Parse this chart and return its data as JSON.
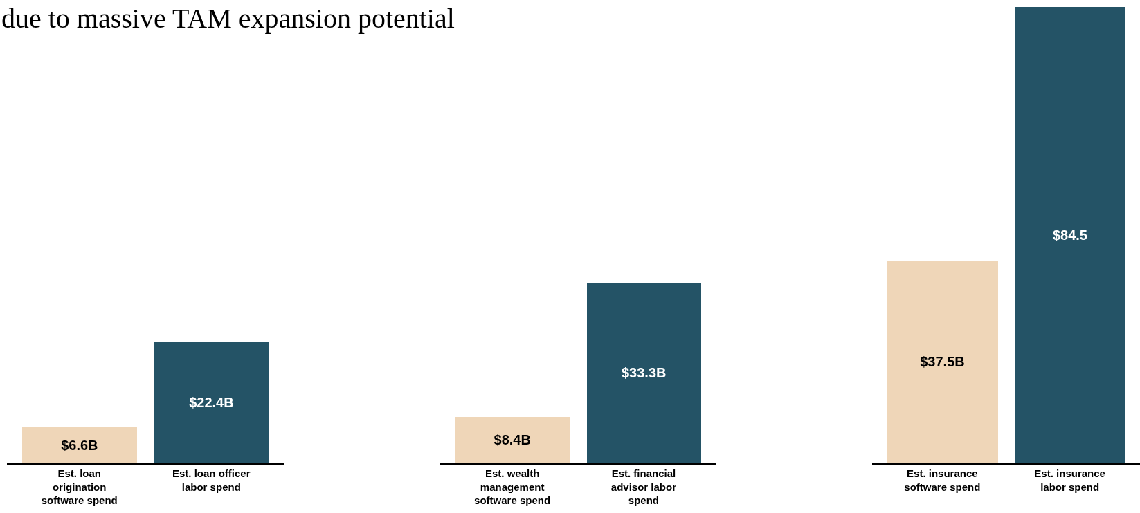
{
  "chart_data": [
    {
      "type": "bar",
      "title": "due to massive TAM expansion potential",
      "categories": [
        "Est. loan origination software spend",
        "Est. loan officer labor spend"
      ],
      "values": [
        6.6,
        22.4
      ],
      "colors": [
        "#efd6b8",
        "#245366"
      ],
      "value_labels": [
        "$6.6B",
        "$22.4B"
      ],
      "tick_labels": "x"
    },
    {
      "type": "bar",
      "categories": [
        "Est. wealth management software spend",
        "Est. financial advisor labor spend"
      ],
      "values": [
        8.4,
        33.3
      ],
      "colors": [
        "#efd6b8",
        "#245366"
      ],
      "value_labels": [
        "$8.4B",
        "$33.3B"
      ],
      "tick_labels": "x"
    },
    {
      "type": "bar",
      "categories": [
        "Est. insurance software spend",
        "Est. insurance labor spend"
      ],
      "values": [
        37.5,
        84.5
      ],
      "colors": [
        "#efd6b8",
        "#245366"
      ],
      "value_labels": [
        "$37.5B",
        "$84.5"
      ],
      "tick_labels": "x"
    }
  ]
}
